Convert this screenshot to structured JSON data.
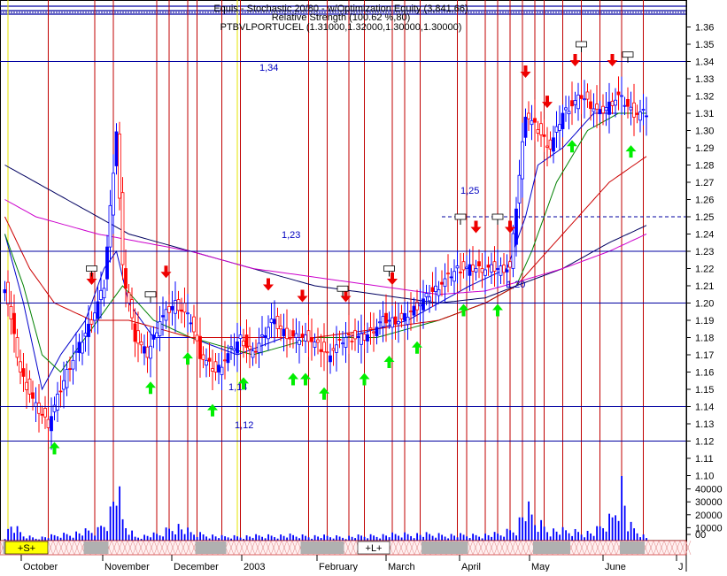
{
  "header": {
    "line1": "Equis - Stochastic 20/80 - w/Optimization Equity (3,841.66)",
    "line2": "Relative Strength (100.62 %,80)",
    "line3": "PTBVLPORTUCEL (1.31000,1.32000,1.30000,1.30000)"
  },
  "colors": {
    "price_up": "#0000ff",
    "price_down": "#ff0000",
    "event_line": "#c00000",
    "level_line": "#0000a0",
    "ma_blue": "#0000cc",
    "ma_green": "#008000",
    "ma_red": "#cc0000",
    "ma_navy": "#000060",
    "ma_magenta": "#cc00cc",
    "buy_arrow": "#00ee00",
    "sell_arrow": "#ee0000"
  },
  "chart_data": {
    "type": "candlestick",
    "ylim": [
      1.09,
      1.37
    ],
    "y_ticks": [
      "1.36",
      "1.35",
      "1.34",
      "1.33",
      "1.32",
      "1.31",
      "1.30",
      "1.29",
      "1.28",
      "1.27",
      "1.26",
      "1.25",
      "1.24",
      "1.23",
      "1.22",
      "1.21",
      "1.20",
      "1.19",
      "1.18",
      "1.17",
      "1.16",
      "1.15",
      "1.14",
      "1.13",
      "1.12",
      "1.11",
      "1.10"
    ],
    "volume_ticks": [
      "40000",
      "30000",
      "20000",
      "10000",
      "00"
    ],
    "volume_ylim": [
      0,
      50000
    ],
    "x_labels": [
      "October",
      "November",
      "December",
      "2003",
      "February",
      "March",
      "April",
      "May",
      "June",
      "J"
    ],
    "period_bands": [
      "+S+",
      "+L+"
    ],
    "level_labels": [
      {
        "value": 1.34,
        "text": "1,34"
      },
      {
        "value": 1.25,
        "text": "1,25"
      },
      {
        "value": 1.23,
        "text": "1,23"
      },
      {
        "value": 1.2,
        "text": "1,20"
      },
      {
        "value": 1.14,
        "text": "1,14"
      },
      {
        "value": 1.12,
        "text": "1,12"
      }
    ],
    "close_keypoints": [
      [
        0,
        1.21
      ],
      [
        5,
        1.16
      ],
      [
        10,
        1.14
      ],
      [
        14,
        1.13
      ],
      [
        20,
        1.16
      ],
      [
        28,
        1.19
      ],
      [
        32,
        1.21
      ],
      [
        36,
        1.3
      ],
      [
        38,
        1.22
      ],
      [
        42,
        1.18
      ],
      [
        46,
        1.17
      ],
      [
        50,
        1.19
      ],
      [
        55,
        1.2
      ],
      [
        60,
        1.19
      ],
      [
        63,
        1.17
      ],
      [
        68,
        1.16
      ],
      [
        72,
        1.17
      ],
      [
        76,
        1.18
      ],
      [
        80,
        1.17
      ],
      [
        86,
        1.19
      ],
      [
        92,
        1.18
      ],
      [
        98,
        1.18
      ],
      [
        104,
        1.17
      ],
      [
        110,
        1.18
      ],
      [
        116,
        1.18
      ],
      [
        122,
        1.19
      ],
      [
        128,
        1.19
      ],
      [
        134,
        1.2
      ],
      [
        140,
        1.21
      ],
      [
        146,
        1.22
      ],
      [
        152,
        1.22
      ],
      [
        158,
        1.22
      ],
      [
        163,
        1.22
      ],
      [
        168,
        1.31
      ],
      [
        172,
        1.3
      ],
      [
        176,
        1.29
      ],
      [
        180,
        1.31
      ],
      [
        186,
        1.32
      ],
      [
        192,
        1.31
      ],
      [
        198,
        1.32
      ],
      [
        203,
        1.31
      ],
      [
        207,
        1.31
      ]
    ],
    "moving_averages": [
      {
        "color_key": "ma_blue",
        "points": [
          [
            0,
            1.24
          ],
          [
            6,
            1.2
          ],
          [
            12,
            1.15
          ],
          [
            18,
            1.17
          ],
          [
            26,
            1.19
          ],
          [
            32,
            1.22
          ],
          [
            36,
            1.23
          ],
          [
            40,
            1.2
          ],
          [
            48,
            1.18
          ],
          [
            60,
            1.18
          ],
          [
            75,
            1.17
          ],
          [
            90,
            1.18
          ],
          [
            110,
            1.18
          ],
          [
            130,
            1.19
          ],
          [
            150,
            1.21
          ],
          [
            162,
            1.22
          ],
          [
            168,
            1.25
          ],
          [
            172,
            1.28
          ],
          [
            180,
            1.29
          ],
          [
            190,
            1.31
          ],
          [
            200,
            1.31
          ],
          [
            207,
            1.31
          ]
        ]
      },
      {
        "color_key": "ma_green",
        "points": [
          [
            0,
            1.24
          ],
          [
            6,
            1.21
          ],
          [
            12,
            1.17
          ],
          [
            18,
            1.16
          ],
          [
            26,
            1.18
          ],
          [
            34,
            1.2
          ],
          [
            38,
            1.21
          ],
          [
            48,
            1.19
          ],
          [
            60,
            1.18
          ],
          [
            80,
            1.17
          ],
          [
            100,
            1.18
          ],
          [
            120,
            1.18
          ],
          [
            140,
            1.19
          ],
          [
            155,
            1.2
          ],
          [
            165,
            1.21
          ],
          [
            170,
            1.23
          ],
          [
            178,
            1.27
          ],
          [
            188,
            1.3
          ],
          [
            198,
            1.31
          ],
          [
            207,
            1.31
          ]
        ]
      },
      {
        "color_key": "ma_red",
        "points": [
          [
            0,
            1.25
          ],
          [
            8,
            1.22
          ],
          [
            16,
            1.2
          ],
          [
            28,
            1.19
          ],
          [
            40,
            1.19
          ],
          [
            60,
            1.18
          ],
          [
            80,
            1.18
          ],
          [
            100,
            1.18
          ],
          [
            120,
            1.185
          ],
          [
            140,
            1.19
          ],
          [
            155,
            1.2
          ],
          [
            165,
            1.21
          ],
          [
            175,
            1.23
          ],
          [
            185,
            1.25
          ],
          [
            195,
            1.27
          ],
          [
            207,
            1.285
          ]
        ]
      },
      {
        "color_key": "ma_navy",
        "points": [
          [
            0,
            1.28
          ],
          [
            10,
            1.27
          ],
          [
            20,
            1.26
          ],
          [
            30,
            1.25
          ],
          [
            40,
            1.24
          ],
          [
            50,
            1.235
          ],
          [
            60,
            1.23
          ],
          [
            80,
            1.22
          ],
          [
            100,
            1.21
          ],
          [
            120,
            1.205
          ],
          [
            140,
            1.2
          ],
          [
            155,
            1.203
          ],
          [
            165,
            1.21
          ],
          [
            180,
            1.22
          ],
          [
            195,
            1.235
          ],
          [
            207,
            1.245
          ]
        ]
      },
      {
        "color_key": "ma_magenta",
        "points": [
          [
            0,
            1.26
          ],
          [
            10,
            1.25
          ],
          [
            20,
            1.245
          ],
          [
            30,
            1.24
          ],
          [
            45,
            1.235
          ],
          [
            60,
            1.23
          ],
          [
            80,
            1.22
          ],
          [
            100,
            1.215
          ],
          [
            120,
            1.21
          ],
          [
            140,
            1.205
          ],
          [
            155,
            1.207
          ],
          [
            165,
            1.212
          ],
          [
            180,
            1.22
          ],
          [
            195,
            1.23
          ],
          [
            207,
            1.24
          ]
        ]
      }
    ],
    "volume_keypoints": [
      [
        0,
        3000
      ],
      [
        2,
        12000
      ],
      [
        6,
        4000
      ],
      [
        10,
        2000
      ],
      [
        30,
        8000
      ],
      [
        34,
        22000
      ],
      [
        36,
        45000
      ],
      [
        38,
        15000
      ],
      [
        42,
        3000
      ],
      [
        50,
        5000
      ],
      [
        55,
        12000
      ],
      [
        60,
        6000
      ],
      [
        70,
        3000
      ],
      [
        90,
        4000
      ],
      [
        110,
        3000
      ],
      [
        130,
        5000
      ],
      [
        150,
        4000
      ],
      [
        160,
        5000
      ],
      [
        165,
        10000
      ],
      [
        168,
        25000
      ],
      [
        171,
        15000
      ],
      [
        176,
        8000
      ],
      [
        190,
        6000
      ],
      [
        196,
        18000
      ],
      [
        199,
        48000
      ],
      [
        201,
        12000
      ],
      [
        207,
        2000
      ]
    ],
    "buy_arrow_bars": [
      16,
      47,
      59,
      67,
      77,
      93,
      97,
      103,
      116,
      124,
      133,
      148,
      159,
      183,
      202
    ],
    "sell_arrow_bars": [
      28,
      52,
      85,
      96,
      110,
      125,
      152,
      163,
      168,
      175,
      184,
      196
    ],
    "box_marker_bars": [
      28,
      47,
      109,
      124,
      147,
      159,
      186,
      201
    ]
  }
}
